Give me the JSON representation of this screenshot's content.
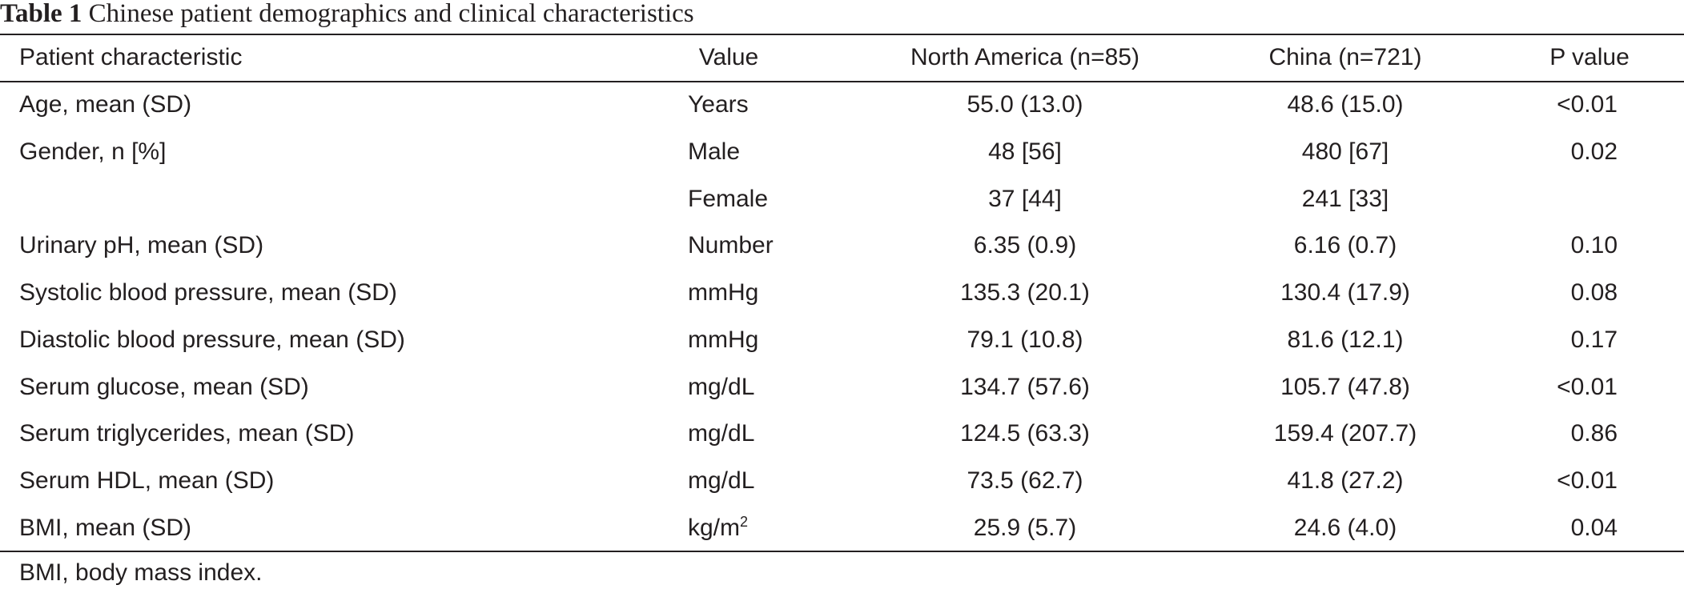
{
  "caption": {
    "label": "Table 1",
    "text": "Chinese patient demographics and clinical characteristics"
  },
  "table": {
    "headers": [
      "Patient characteristic",
      "Value",
      "North America (n=85)",
      "China (n=721)",
      "P value"
    ],
    "rows": [
      {
        "characteristic": "Age, mean (SD)",
        "value": "Years",
        "value_sup": "",
        "north_america": "55.0 (13.0)",
        "china": "48.6 (15.0)",
        "p_value": "<0.01"
      },
      {
        "characteristic": "Gender, n [%]",
        "value": "Male",
        "value_sup": "",
        "north_america": "48 [56]",
        "china": "480 [67]",
        "p_value": "0.02"
      },
      {
        "characteristic": "",
        "value": "Female",
        "value_sup": "",
        "north_america": "37 [44]",
        "china": "241 [33]",
        "p_value": ""
      },
      {
        "characteristic": "Urinary pH, mean (SD)",
        "value": "Number",
        "value_sup": "",
        "north_america": "6.35 (0.9)",
        "china": "6.16 (0.7)",
        "p_value": "0.10"
      },
      {
        "characteristic": "Systolic blood pressure, mean (SD)",
        "value": "mmHg",
        "value_sup": "",
        "north_america": "135.3 (20.1)",
        "china": "130.4 (17.9)",
        "p_value": "0.08"
      },
      {
        "characteristic": "Diastolic blood pressure, mean (SD)",
        "value": "mmHg",
        "value_sup": "",
        "north_america": "79.1 (10.8)",
        "china": "81.6 (12.1)",
        "p_value": "0.17"
      },
      {
        "characteristic": "Serum glucose, mean (SD)",
        "value": "mg/dL",
        "value_sup": "",
        "north_america": "134.7 (57.6)",
        "china": "105.7 (47.8)",
        "p_value": "<0.01"
      },
      {
        "characteristic": "Serum triglycerides, mean (SD)",
        "value": "mg/dL",
        "value_sup": "",
        "north_america": "124.5 (63.3)",
        "china": "159.4 (207.7)",
        "p_value": "0.86"
      },
      {
        "characteristic": "Serum HDL, mean (SD)",
        "value": "mg/dL",
        "value_sup": "",
        "north_america": "73.5 (62.7)",
        "china": "41.8 (27.2)",
        "p_value": "<0.01"
      },
      {
        "characteristic": "BMI, mean (SD)",
        "value": "kg/m",
        "value_sup": "2",
        "north_america": "25.9 (5.7)",
        "china": "24.6 (4.0)",
        "p_value": "0.04"
      }
    ]
  },
  "footnote": "BMI, body mass index."
}
